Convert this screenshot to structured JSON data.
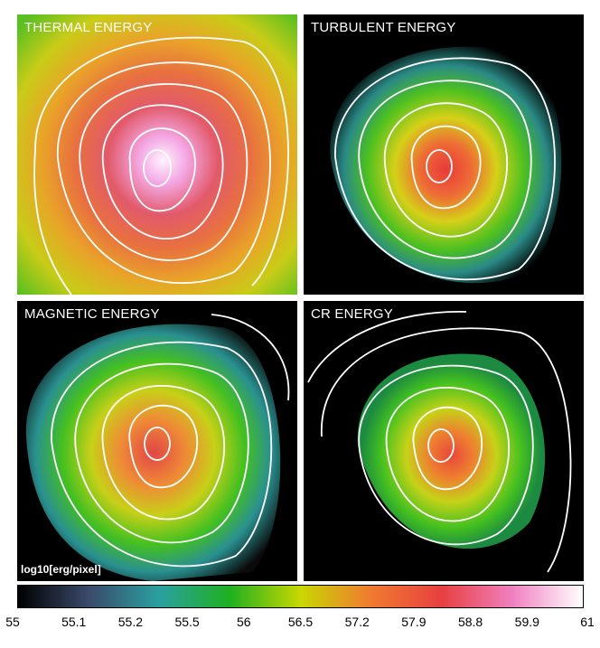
{
  "panels": [
    {
      "id": "thermal",
      "title": "THERMAL ENERGY"
    },
    {
      "id": "turbulent",
      "title": "TURBULENT ENERGY"
    },
    {
      "id": "magnetic",
      "title": "MAGNETIC ENERGY",
      "unit_label": "log10[erg/pixel]"
    },
    {
      "id": "cr",
      "title": "CR ENERGY"
    }
  ],
  "colorbar": {
    "ticks": [
      "55",
      "55.1",
      "55.2",
      "55.5",
      "56",
      "56.5",
      "57.2",
      "57.9",
      "58.8",
      "59.9",
      "61"
    ],
    "colors": [
      "#000000",
      "#3a4a6a",
      "#2aa0a0",
      "#1fb020",
      "#c8d800",
      "#f07a30",
      "#e84040",
      "#f080c0",
      "#ffffff"
    ]
  }
}
